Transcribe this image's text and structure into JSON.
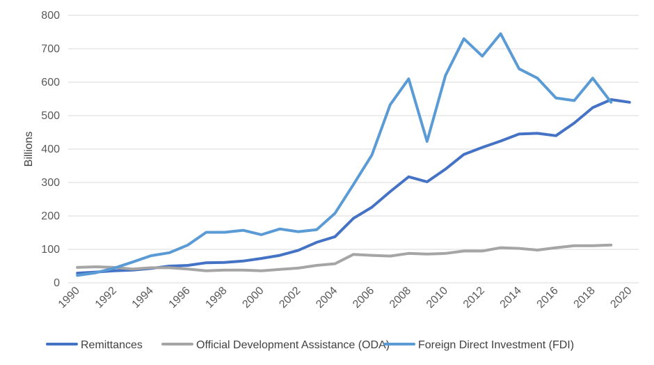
{
  "chart_data": {
    "type": "line",
    "title": "",
    "xlabel": "",
    "ylabel": "Billions",
    "ylim": [
      0,
      800
    ],
    "yticks": [
      0,
      100,
      200,
      300,
      400,
      500,
      600,
      700,
      800
    ],
    "xlim": [
      1990,
      2020
    ],
    "xticks": [
      "1990",
      "1992",
      "1994",
      "1996",
      "1998",
      "2000",
      "2002",
      "2004",
      "2006",
      "2008",
      "2010",
      "2012",
      "2014",
      "2016",
      "2018",
      "2020"
    ],
    "grid": true,
    "legend_position": "bottom",
    "series": [
      {
        "name": "Remittances",
        "color": "#4472C4",
        "x": [
          1990,
          1991,
          1992,
          1993,
          1994,
          1995,
          1996,
          1997,
          1998,
          1999,
          2000,
          2001,
          2002,
          2003,
          2004,
          2005,
          2006,
          2007,
          2008,
          2009,
          2010,
          2011,
          2012,
          2013,
          2014,
          2015,
          2016,
          2017,
          2018,
          2019,
          2020
        ],
        "values": [
          29,
          32,
          36,
          38,
          43,
          50,
          52,
          60,
          61,
          65,
          73,
          82,
          97,
          121,
          138,
          193,
          226,
          273,
          317,
          302,
          340,
          384,
          405,
          424,
          445,
          447,
          440,
          478,
          524,
          548,
          540
        ]
      },
      {
        "name": "Official Development Assistance (ODA)",
        "color": "#A5A5A5",
        "x": [
          1990,
          1991,
          1992,
          1993,
          1994,
          1995,
          1996,
          1997,
          1998,
          1999,
          2000,
          2001,
          2002,
          2003,
          2004,
          2005,
          2006,
          2007,
          2008,
          2009,
          2010,
          2011,
          2012,
          2013,
          2014,
          2015,
          2016,
          2017,
          2018,
          2019
        ],
        "values": [
          46,
          48,
          46,
          41,
          45,
          45,
          41,
          36,
          38,
          38,
          36,
          40,
          44,
          52,
          57,
          85,
          82,
          80,
          88,
          86,
          88,
          95,
          95,
          105,
          103,
          98,
          105,
          111,
          111,
          113
        ]
      },
      {
        "name": "Foreign Direct Investment (FDI)",
        "color": "#5B9BD5",
        "x": [
          1990,
          1991,
          1992,
          1993,
          1994,
          1995,
          1996,
          1997,
          1998,
          1999,
          2000,
          2001,
          2002,
          2003,
          2004,
          2005,
          2006,
          2007,
          2008,
          2009,
          2010,
          2011,
          2012,
          2013,
          2014,
          2015,
          2016,
          2017,
          2018,
          2019
        ],
        "values": [
          22,
          30,
          44,
          62,
          81,
          90,
          113,
          151,
          151,
          157,
          144,
          161,
          153,
          159,
          208,
          294,
          382,
          533,
          610,
          423,
          620,
          730,
          678,
          745,
          640,
          612,
          553,
          545,
          612,
          540
        ]
      }
    ]
  }
}
